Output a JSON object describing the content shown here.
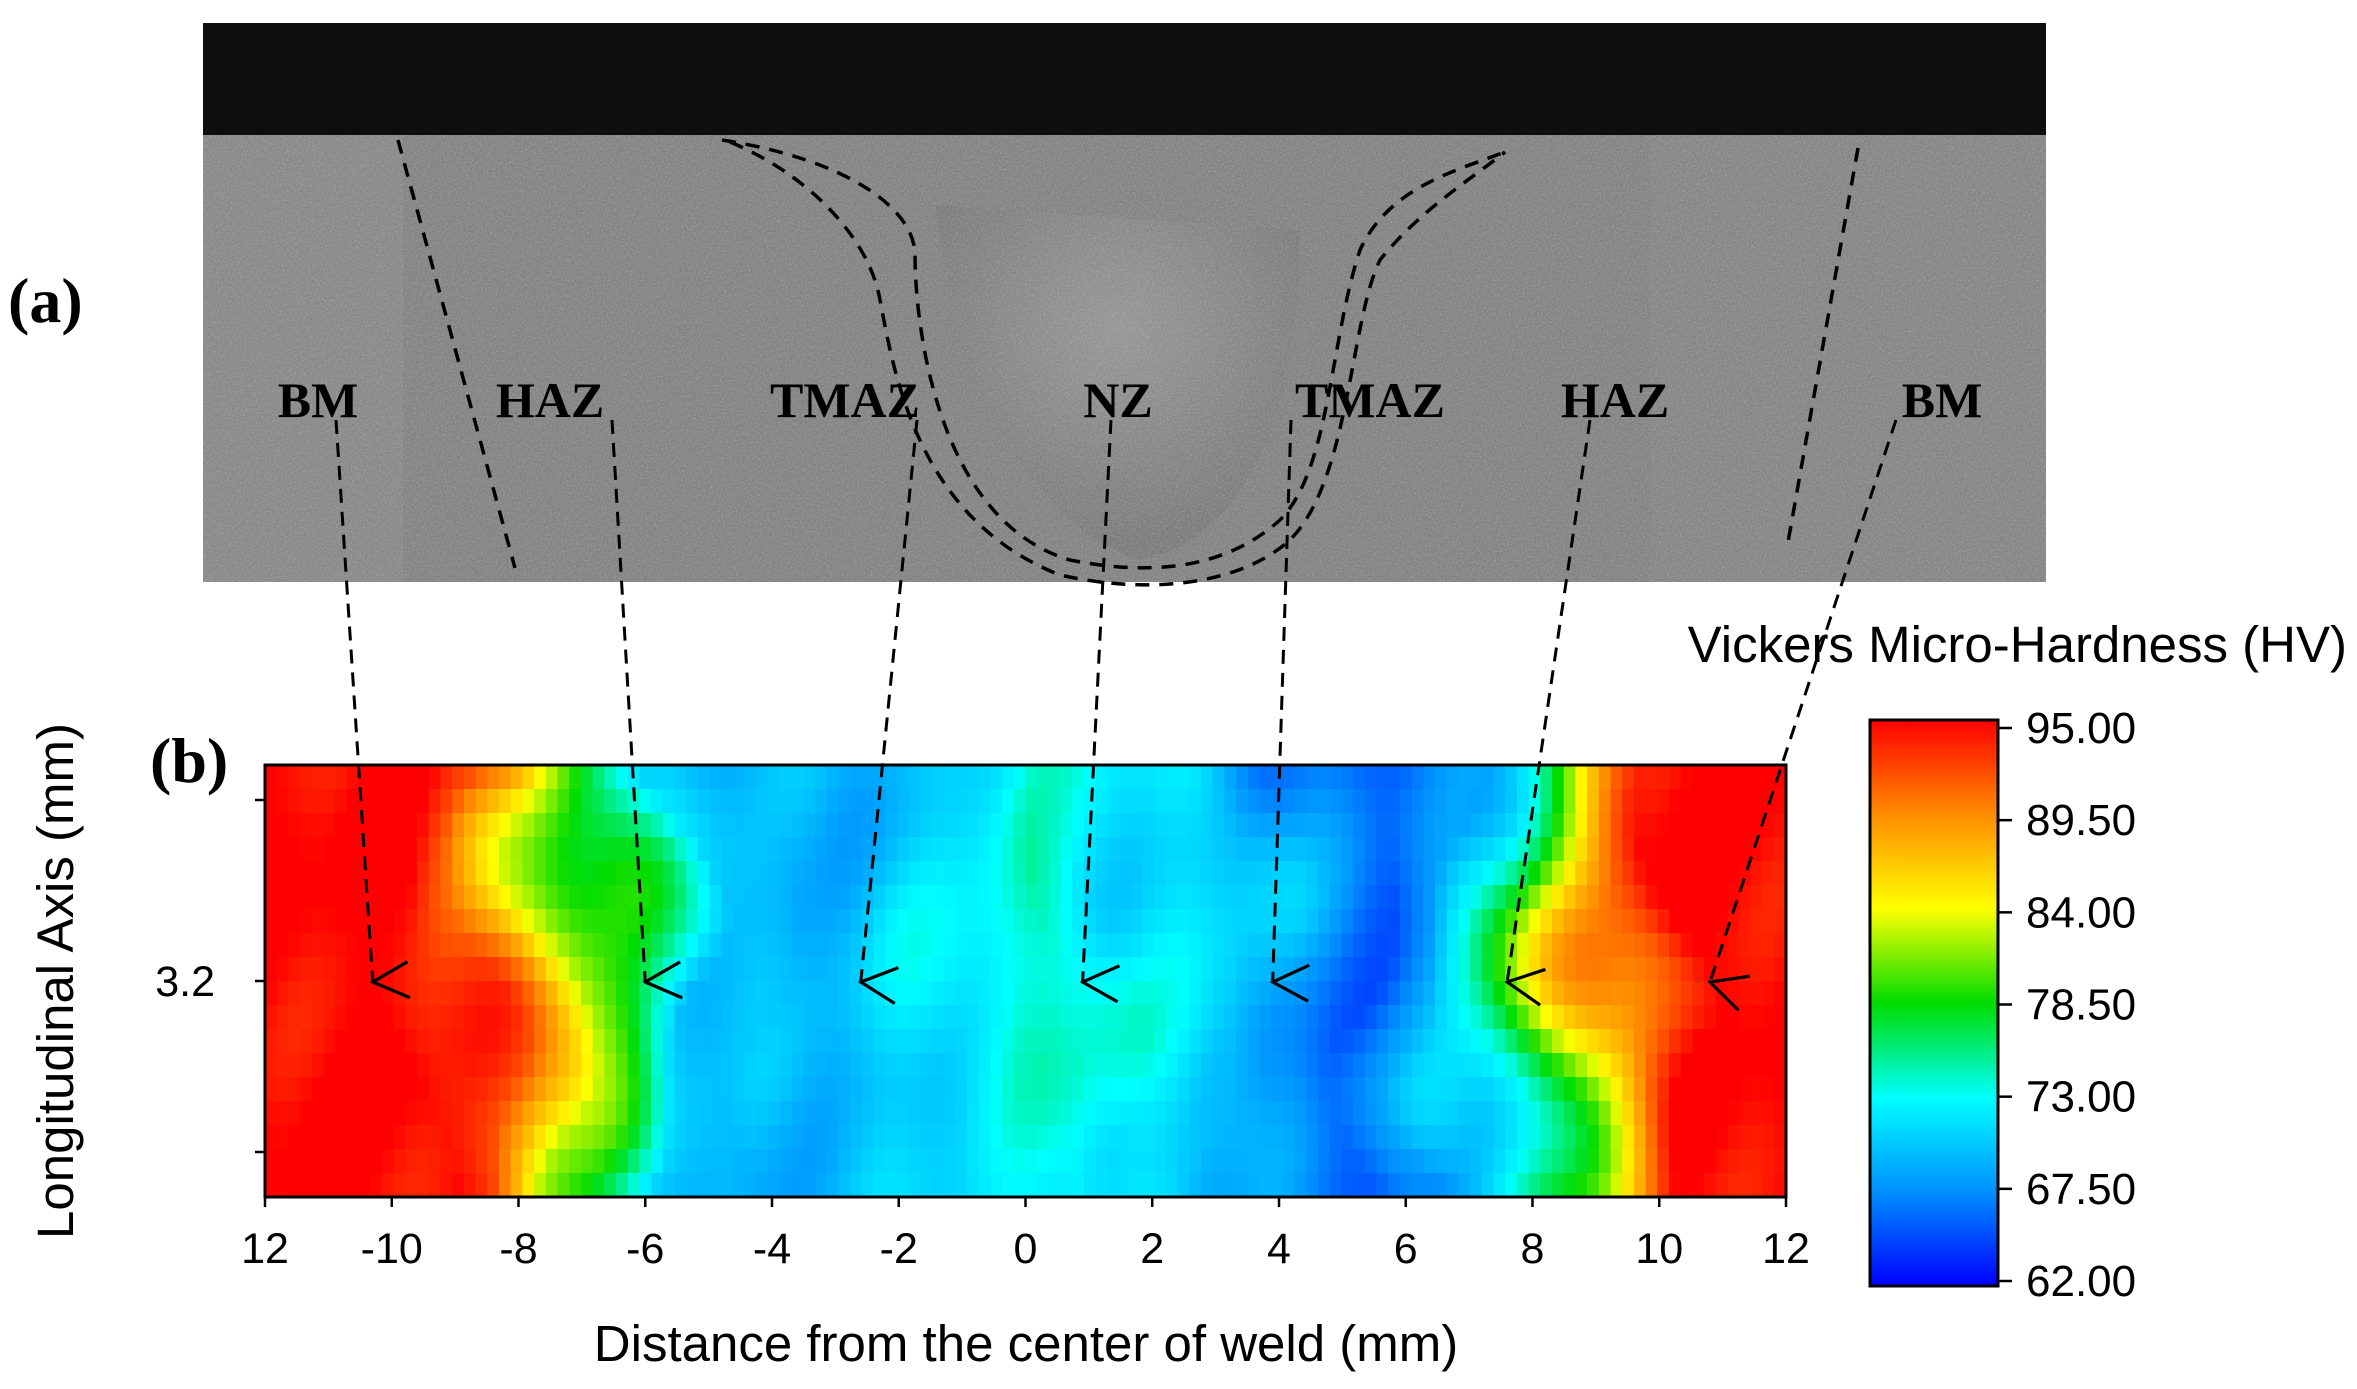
{
  "figure": {
    "panel_a_label": "(a)",
    "panel_b_label": "(b)",
    "micrograph_zones": [
      "BM",
      "HAZ",
      "TMAZ",
      "NZ",
      "TMAZ",
      "HAZ",
      "BM"
    ]
  },
  "chart_data": {
    "type": "heatmap",
    "title": "",
    "xlabel": "Distance from the center of weld (mm)",
    "ylabel": "Longitudinal Axis (mm)",
    "xlim": [
      -12,
      12
    ],
    "x_ticks": [
      12,
      -10,
      -8,
      -6,
      -4,
      -2,
      0,
      2,
      4,
      6,
      8,
      10,
      12
    ],
    "y_ticks": [
      "3.2"
    ],
    "colorbar": {
      "title": "Vickers Micro-Hardness (HV)",
      "min": 62.0,
      "max": 95.0,
      "ticks": [
        "95.00",
        "89.50",
        "84.00",
        "78.50",
        "73.00",
        "67.50",
        "62.00"
      ],
      "colors": [
        "#0000ff",
        "#0090ff",
        "#00ffff",
        "#00dc00",
        "#ffff00",
        "#ff8c00",
        "#ff0000"
      ]
    },
    "hardness_profile": {
      "x_mm": [
        -12,
        -9.5,
        -8.6,
        -8.0,
        -7.4,
        -6.5,
        -5.5,
        -4.0,
        -2.5,
        -1.0,
        0.5,
        1.5,
        3.0,
        4.0,
        5.5,
        6.5,
        7.5,
        8.3,
        9.0,
        9.6,
        10.2,
        12
      ],
      "hv": [
        95,
        95,
        92,
        88,
        83,
        78,
        71,
        69,
        70,
        72,
        74,
        72,
        71,
        68,
        66,
        68,
        74,
        80,
        86,
        91,
        95,
        95
      ]
    },
    "zone_markers": [
      {
        "zone": "BM",
        "x_mm": -10.3
      },
      {
        "zone": "HAZ",
        "x_mm": -6.0
      },
      {
        "zone": "TMAZ",
        "x_mm": -2.6
      },
      {
        "zone": "NZ",
        "x_mm": 0.9
      },
      {
        "zone": "TMAZ",
        "x_mm": 3.9
      },
      {
        "zone": "HAZ",
        "x_mm": 7.6
      },
      {
        "zone": "BM",
        "x_mm": 10.8
      }
    ]
  }
}
